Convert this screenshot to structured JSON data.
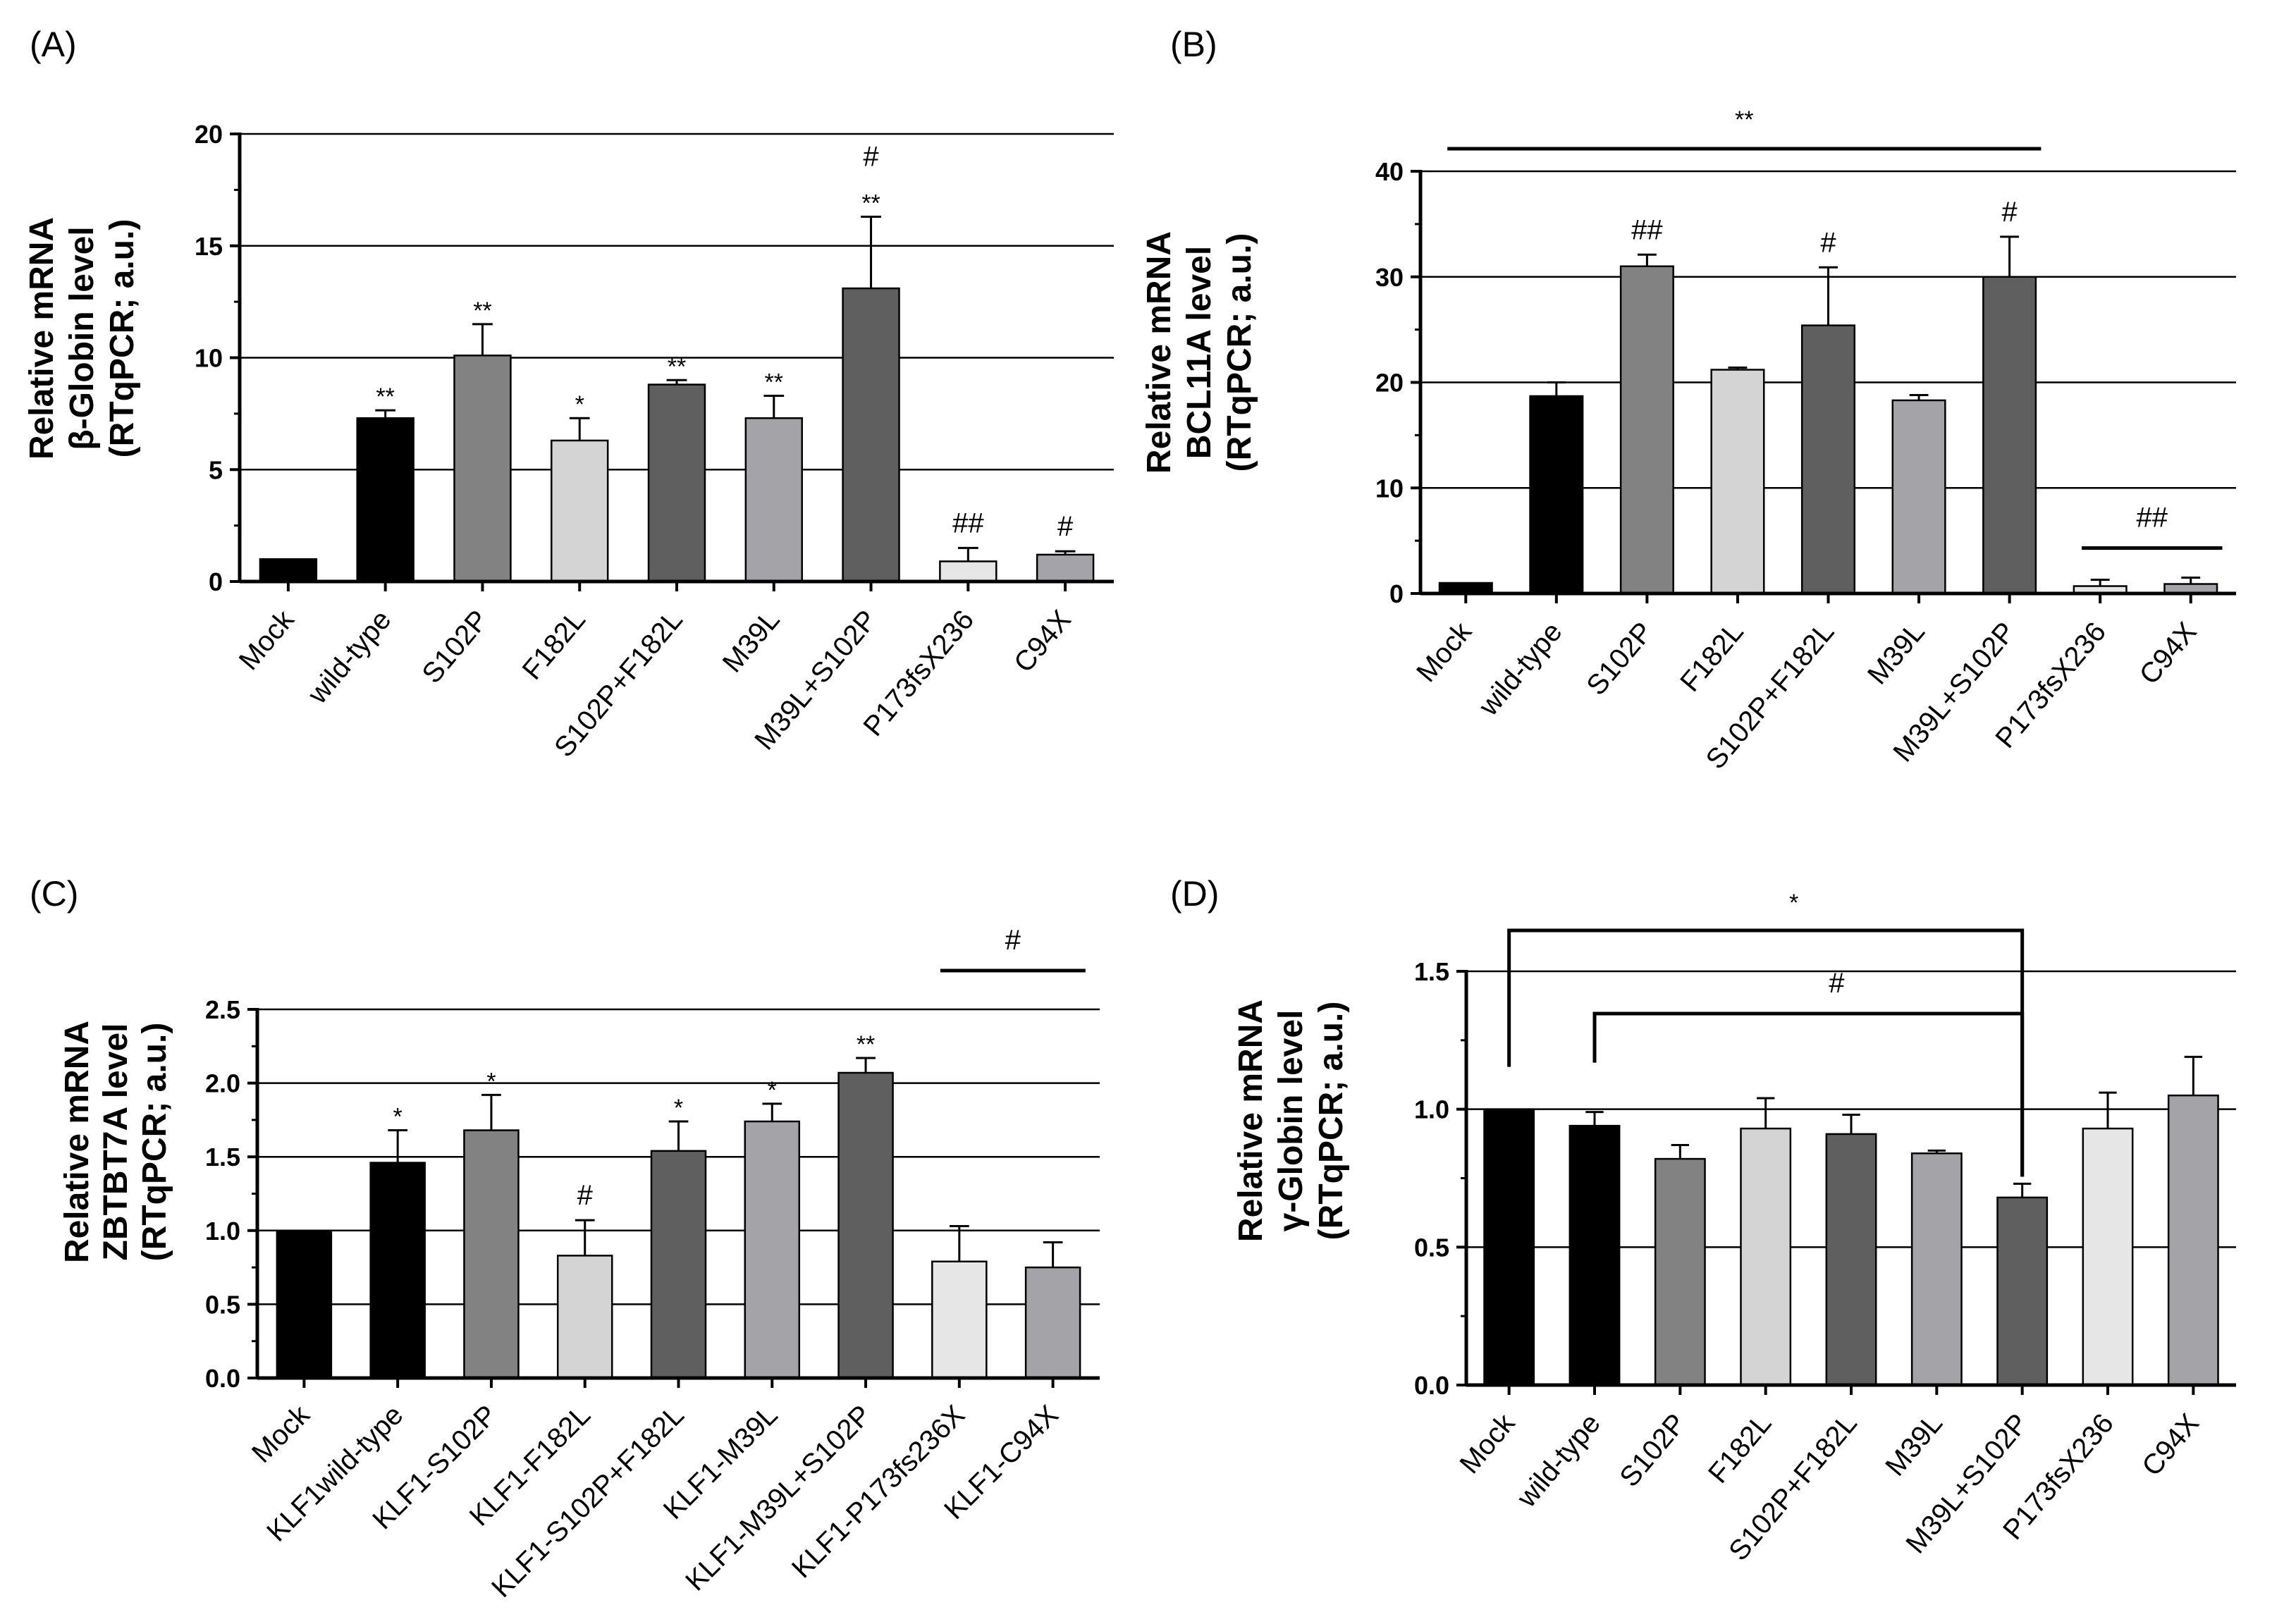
{
  "chart_data": [
    {
      "type": "bar",
      "panel_label": "(A)",
      "ylabel_lines": [
        "Relative mRNA",
        "β-Globin  level",
        "(RTqPCR; a.u.)"
      ],
      "categories": [
        "Mock",
        "wild-type",
        "S102P",
        "F182L",
        "S102P+F182L",
        "M39L",
        "M39L+S102P",
        "P173fsX236",
        "C94X"
      ],
      "values": [
        1.0,
        7.3,
        10.1,
        6.3,
        8.8,
        7.3,
        13.1,
        0.9,
        1.2
      ],
      "errors": [
        0,
        0.35,
        1.4,
        1.0,
        0.2,
        1.0,
        3.2,
        0.6,
        0.15
      ],
      "bar_colors": [
        "#000000",
        "#000000",
        "#828282",
        "#d4d4d4",
        "#5f5f5f",
        "#a4a4a8",
        "#5f5f5f",
        "#e6e6e6",
        "#a4a4a8"
      ],
      "ylim": [
        0,
        20
      ],
      "yticks": [
        "0",
        "5",
        "10",
        "15",
        "20"
      ],
      "grid": true,
      "annotations": [
        {
          "bar": 1,
          "texts": [
            "**"
          ]
        },
        {
          "bar": 2,
          "texts": [
            "**"
          ]
        },
        {
          "bar": 3,
          "texts": [
            "*"
          ]
        },
        {
          "bar": 4,
          "texts": [
            "**"
          ]
        },
        {
          "bar": 5,
          "texts": [
            "**"
          ]
        },
        {
          "bar": 6,
          "texts": [
            "**",
            "#"
          ]
        },
        {
          "bar": 7,
          "texts": [
            "##"
          ]
        },
        {
          "bar": 8,
          "texts": [
            "#"
          ]
        }
      ]
    },
    {
      "type": "bar",
      "panel_label": "(B)",
      "ylabel_lines": [
        "Relative mRNA",
        "BCL11A level",
        "(RTqPCR; a.u.)"
      ],
      "categories": [
        "Mock",
        "wild-type",
        "S102P",
        "F182L",
        "S102P+F182L",
        "M39L",
        "M39L+S102P",
        "P173fsX236",
        "C94X"
      ],
      "values": [
        1.0,
        18.7,
        31.0,
        21.2,
        25.4,
        18.3,
        30.0,
        0.7,
        0.9
      ],
      "errors": [
        0,
        1.3,
        1.1,
        0.2,
        5.5,
        0.5,
        3.8,
        0.6,
        0.6
      ],
      "bar_colors": [
        "#000000",
        "#000000",
        "#828282",
        "#d4d4d4",
        "#5f5f5f",
        "#a4a4a8",
        "#5f5f5f",
        "#e6e6e6",
        "#a4a4a8"
      ],
      "ylim": [
        0,
        40
      ],
      "yticks": [
        "0",
        "10",
        "20",
        "30",
        "40"
      ],
      "grid": true,
      "annotations": [
        {
          "bar": 2,
          "texts": [
            "##"
          ]
        },
        {
          "bar": 4,
          "texts": [
            "#"
          ]
        },
        {
          "bar": 6,
          "texts": [
            "#"
          ]
        }
      ],
      "bracket_lines": [
        {
          "from_bar": 0,
          "to_bar": 6,
          "label": "**"
        },
        {
          "from_bar": 7,
          "to_bar": 8,
          "label": "##"
        }
      ]
    },
    {
      "type": "bar",
      "panel_label": "(C)",
      "ylabel_lines": [
        "Relative mRNA",
        "ZBTBT7A level",
        "(RTqPCR; a.u.)"
      ],
      "categories": [
        "Mock",
        "KLF1wild-type",
        "KLF1-S102P",
        "KLF1-F182L",
        "KLF1-S102P+F182L",
        "KLF1-M39L",
        "KLF1-M39L+S102P",
        "KLF1-P173fs236X",
        "KLF1-C94X"
      ],
      "values": [
        1.0,
        1.46,
        1.68,
        0.83,
        1.54,
        1.74,
        2.07,
        0.79,
        0.75
      ],
      "errors": [
        0,
        0.22,
        0.24,
        0.24,
        0.2,
        0.12,
        0.1,
        0.24,
        0.17
      ],
      "bar_colors": [
        "#000000",
        "#000000",
        "#828282",
        "#d4d4d4",
        "#5f5f5f",
        "#a4a4a8",
        "#5f5f5f",
        "#e6e6e6",
        "#a4a4a8"
      ],
      "ylim": [
        0,
        2.5
      ],
      "yticks": [
        "0.0",
        "0.5",
        "1.0",
        "1.5",
        "2.0",
        "2.5"
      ],
      "grid": true,
      "annotations": [
        {
          "bar": 1,
          "texts": [
            "*"
          ]
        },
        {
          "bar": 2,
          "texts": [
            "*"
          ]
        },
        {
          "bar": 3,
          "texts": [
            "#"
          ]
        },
        {
          "bar": 4,
          "texts": [
            "*"
          ]
        },
        {
          "bar": 5,
          "texts": [
            "*"
          ]
        },
        {
          "bar": 6,
          "texts": [
            "**"
          ]
        }
      ],
      "bracket_lines": [
        {
          "from_bar": 7,
          "to_bar": 8,
          "label": "#"
        }
      ]
    },
    {
      "type": "bar",
      "panel_label": "(D)",
      "ylabel_lines": [
        "Relative mRNA",
        "γ-Globin  level",
        "(RTqPCR; a.u.)"
      ],
      "categories": [
        "Mock",
        "wild-type",
        "S102P",
        "F182L",
        "S102P+F182L",
        "M39L",
        "M39L+S102P",
        "P173fsX236",
        "C94X"
      ],
      "values": [
        1.0,
        0.94,
        0.82,
        0.93,
        0.91,
        0.84,
        0.68,
        0.93,
        1.05
      ],
      "errors": [
        0,
        0.05,
        0.05,
        0.11,
        0.07,
        0.01,
        0.05,
        0.13,
        0.14
      ],
      "bar_colors": [
        "#000000",
        "#000000",
        "#828282",
        "#d4d4d4",
        "#5f5f5f",
        "#a4a4a8",
        "#5f5f5f",
        "#e6e6e6",
        "#a4a4a8"
      ],
      "ylim": [
        0,
        1.5
      ],
      "yticks": [
        "0.0",
        "0.5",
        "1.0",
        "1.5"
      ],
      "grid": true,
      "annotations": [],
      "brackets": [
        {
          "from_bar": 0,
          "to_bar": 6,
          "label": "*"
        },
        {
          "from_bar": 1,
          "to_bar": 6,
          "label": "#"
        }
      ]
    }
  ]
}
